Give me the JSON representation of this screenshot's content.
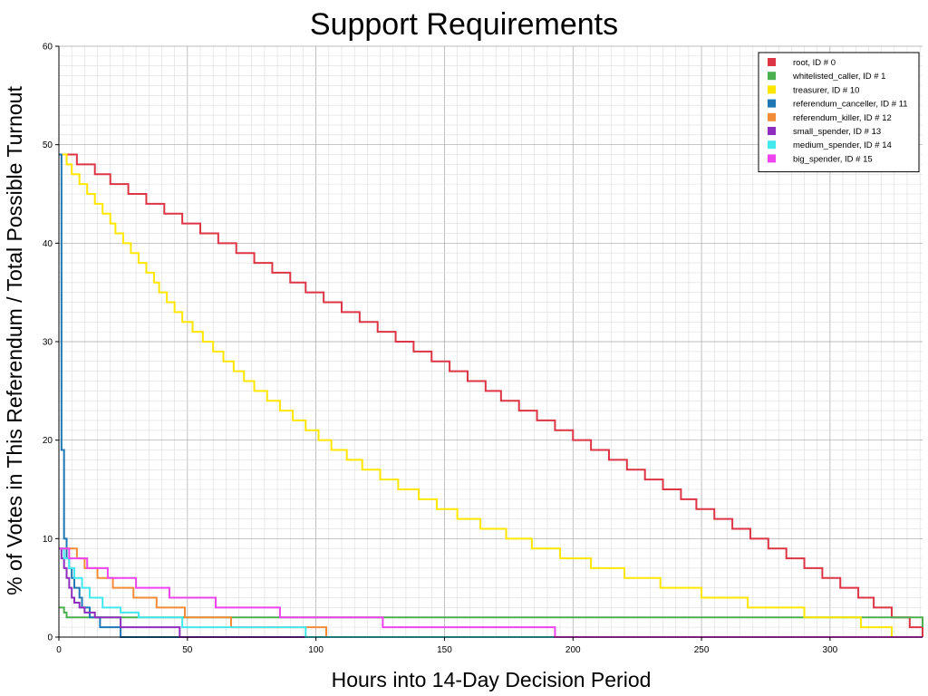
{
  "chart_data": {
    "type": "line",
    "title": "Support Requirements",
    "xlabel": "Hours into 14-Day Decision Period",
    "ylabel": "% of Votes in This Referendum / Total Possible Turnout",
    "xlim": [
      0,
      336
    ],
    "ylim": [
      0,
      60
    ],
    "x_ticks": [
      0,
      50,
      100,
      150,
      200,
      250,
      300
    ],
    "y_ticks": [
      0,
      10,
      20,
      30,
      40,
      50,
      60
    ],
    "grid": true,
    "legend_position": "top-right",
    "series": [
      {
        "name": "root, ID # 0",
        "color": "#dc3545",
        "x": [
          0,
          4,
          7,
          14,
          20,
          27,
          34,
          41,
          48,
          55,
          62,
          69,
          76,
          83,
          90,
          96,
          103,
          110,
          117,
          124,
          131,
          138,
          145,
          152,
          159,
          166,
          172,
          179,
          186,
          193,
          200,
          207,
          214,
          221,
          228,
          235,
          242,
          248,
          255,
          262,
          269,
          276,
          283,
          290,
          297,
          304,
          311,
          317,
          324,
          331,
          336
        ],
        "y": [
          49,
          49,
          48,
          47,
          46,
          45,
          44,
          43,
          42,
          41,
          40,
          39,
          38,
          37,
          36,
          35,
          34,
          33,
          32,
          31,
          30,
          29,
          28,
          27,
          26,
          25,
          24,
          23,
          22,
          21,
          20,
          19,
          18,
          17,
          16,
          15,
          14,
          13,
          12,
          11,
          10,
          9,
          8,
          7,
          6,
          5,
          4,
          3,
          2,
          1,
          0
        ]
      },
      {
        "name": "whitelisted_caller, ID # 1",
        "color": "#4caf50",
        "x": [
          0,
          1,
          2,
          3,
          335,
          336
        ],
        "y": [
          3,
          3,
          2.5,
          2,
          2,
          1
        ]
      },
      {
        "name": "treasurer, ID # 10",
        "color": "#ffe600",
        "x": [
          0,
          3,
          5,
          8,
          11,
          14,
          17,
          20,
          22,
          25,
          28,
          31,
          34,
          37,
          39,
          42,
          45,
          48,
          52,
          56,
          60,
          64,
          68,
          72,
          76,
          81,
          86,
          91,
          96,
          101,
          106,
          112,
          118,
          125,
          132,
          140,
          147,
          155,
          164,
          174,
          184,
          195,
          207,
          220,
          234,
          250,
          268,
          290,
          312,
          324,
          336
        ],
        "y": [
          49,
          48,
          47,
          46,
          45,
          44,
          43,
          42,
          41,
          40,
          39,
          38,
          37,
          36,
          35,
          34,
          33,
          32,
          31,
          30,
          29,
          28,
          27,
          26,
          25,
          24,
          23,
          22,
          21,
          20,
          19,
          18,
          17,
          16,
          15,
          14,
          13,
          12,
          11,
          10,
          9,
          8,
          7,
          6,
          5,
          4,
          3,
          2,
          1,
          0,
          0
        ]
      },
      {
        "name": "referendum_canceller, ID # 11",
        "color": "#1f77b4",
        "x": [
          0,
          1,
          2,
          3,
          4,
          5,
          6,
          8,
          9,
          12,
          16,
          24,
          48
        ],
        "y": [
          49,
          19,
          10,
          8,
          7,
          6,
          5,
          4,
          3,
          2,
          1,
          0,
          0
        ]
      },
      {
        "name": "referendum_killer, ID # 12",
        "color": "#f28c38",
        "x": [
          0,
          3,
          7,
          10,
          15,
          21,
          29,
          38,
          49,
          67,
          104,
          168,
          336
        ],
        "y": [
          9,
          9,
          8,
          7,
          6,
          5,
          4,
          3,
          2,
          1,
          0,
          0,
          0
        ]
      },
      {
        "name": "small_spender, ID # 13",
        "color": "#8e2ebf",
        "x": [
          0,
          1,
          2,
          3,
          4,
          5,
          6,
          8,
          10,
          14,
          24,
          47,
          96
        ],
        "y": [
          9,
          8,
          7,
          6,
          5,
          4,
          3.5,
          3,
          2.5,
          2,
          1,
          0,
          0
        ]
      },
      {
        "name": "medium_spender, ID # 14",
        "color": "#43e8ee",
        "x": [
          0,
          2,
          4,
          6,
          9,
          12,
          17,
          24,
          31,
          48,
          96,
          193,
          336
        ],
        "y": [
          9,
          8,
          7,
          6,
          5,
          4,
          3,
          2.5,
          2,
          1,
          0,
          0,
          0
        ]
      },
      {
        "name": "big_spender, ID # 15",
        "color": "#ee44ee",
        "x": [
          0,
          4,
          11,
          19,
          30,
          43,
          61,
          86,
          126,
          193,
          336
        ],
        "y": [
          9,
          8,
          7,
          6,
          5,
          4,
          3,
          2,
          1,
          0,
          0
        ]
      }
    ]
  }
}
